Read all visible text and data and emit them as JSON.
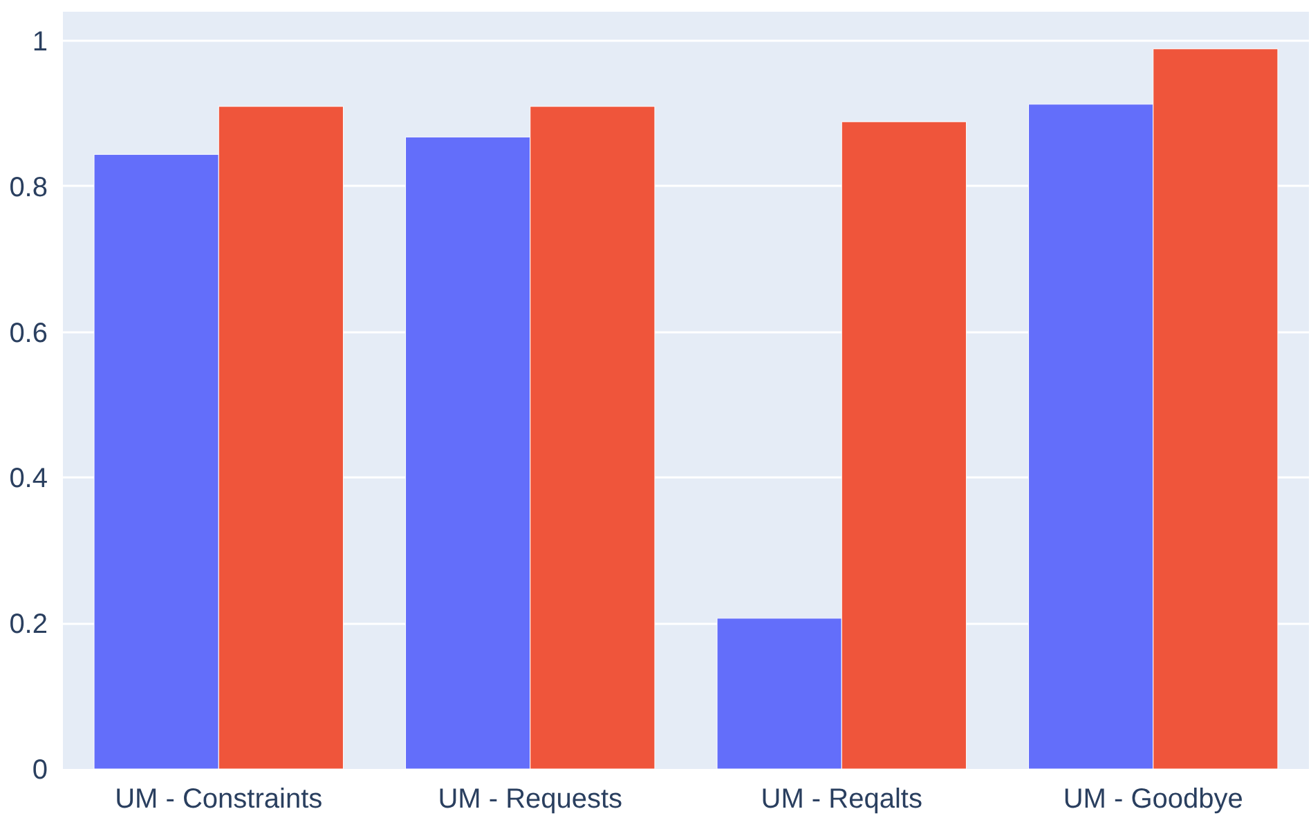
{
  "chart_data": {
    "type": "bar",
    "categories": [
      "UM - Constraints",
      "UM - Requests",
      "UM - Reqalts",
      "UM - Goodbye"
    ],
    "series": [
      {
        "color": "#636efa",
        "values": [
          0.844,
          0.868,
          0.207,
          0.913
        ]
      },
      {
        "color": "#ef553b",
        "values": [
          0.91,
          0.91,
          0.889,
          0.989
        ]
      }
    ],
    "ylim": [
      0,
      1.04
    ],
    "yticks": [
      0,
      0.2,
      0.4,
      0.6,
      0.8,
      1
    ],
    "grid": "y"
  }
}
